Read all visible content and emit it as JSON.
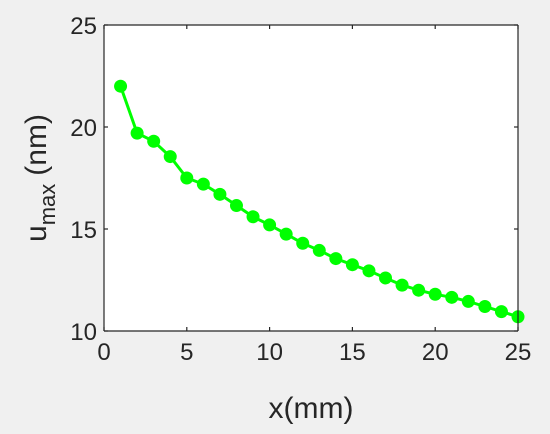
{
  "chart_data": {
    "type": "line",
    "xlabel": "x(mm)",
    "ylabel": {
      "base": "u",
      "subscript": "max",
      "unit": "(nm)"
    },
    "xlim": [
      0,
      25
    ],
    "ylim": [
      10,
      25
    ],
    "xticks": [
      "0",
      "5",
      "10",
      "15",
      "20",
      "25"
    ],
    "yticks": [
      "10",
      "15",
      "20",
      "25"
    ],
    "grid": false,
    "series": [
      {
        "color": "#00ff00",
        "marker": "circle",
        "x": [
          1,
          2,
          3,
          4,
          5,
          6,
          7,
          8,
          9,
          10,
          11,
          12,
          13,
          14,
          15,
          16,
          17,
          18,
          19,
          20,
          21,
          22,
          23,
          24,
          25
        ],
        "y": [
          22.0,
          19.7,
          19.3,
          18.55,
          17.5,
          17.2,
          16.7,
          16.15,
          15.6,
          15.2,
          14.75,
          14.3,
          13.95,
          13.55,
          13.25,
          12.95,
          12.6,
          12.25,
          12.0,
          11.8,
          11.65,
          11.45,
          11.2,
          10.95,
          10.7
        ]
      }
    ]
  }
}
